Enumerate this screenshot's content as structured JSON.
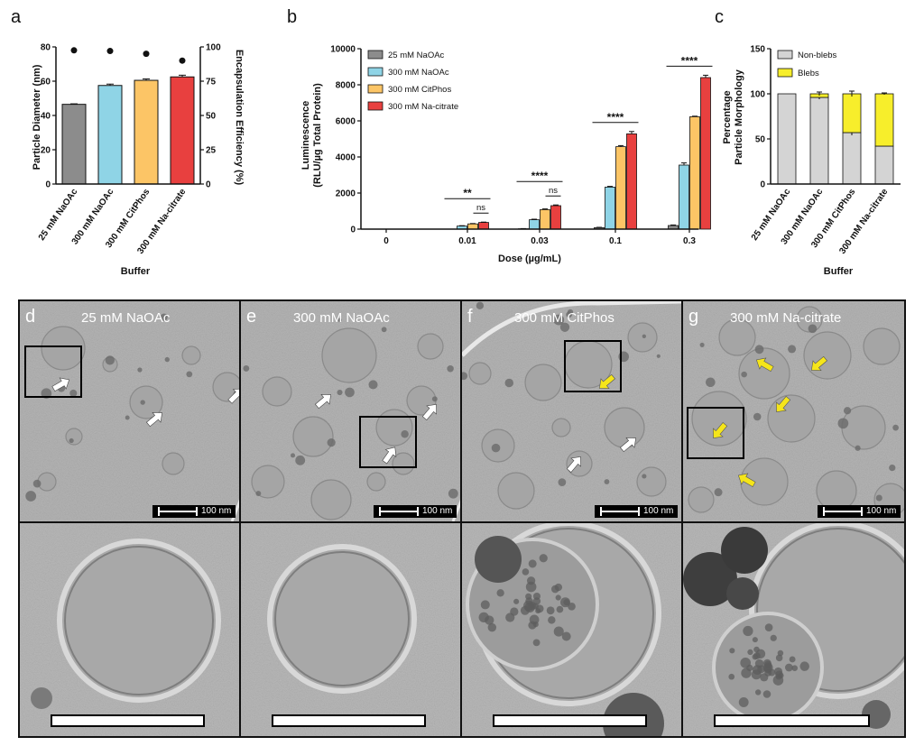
{
  "panels": {
    "a": "a",
    "b": "b",
    "c": "c",
    "d": "d",
    "e": "e",
    "f": "f",
    "g": "g"
  },
  "micrographs": {
    "titles": [
      "25 mM NaOAc",
      "300 mM NaOAc",
      "300 mM CitPhos",
      "300 mM Na-citrate"
    ],
    "scale_label": "100 nm"
  },
  "colors": {
    "grey": "#8c8c8c",
    "cyan": "#8fd4e6",
    "orange": "#fcc566",
    "red": "#e8403f",
    "blebs_yellow": "#f7ee2b",
    "nonblebs_grey": "#d4d4d4"
  },
  "chart_data": [
    {
      "id": "a",
      "type": "bar",
      "categories": [
        "25 mM NaOAc",
        "300 mM NaOAc",
        "300 mM CitPhos",
        "300 mM Na-citrate"
      ],
      "values": [
        46.5,
        57.5,
        60.5,
        62.5
      ],
      "errors": [
        0.3,
        0.8,
        0.8,
        1.0
      ],
      "secondary_values": [
        97.5,
        97,
        95,
        90
      ],
      "xlabel": "Buffer",
      "ylabel": "Particle Diameter (nm)",
      "y2label": "Encapsulation Efficiency (%)",
      "ylim": [
        0,
        80
      ],
      "yticks": [
        "0",
        "20",
        "40",
        "60",
        "80"
      ],
      "y2lim": [
        0,
        100
      ],
      "y2ticks": [
        "0",
        "25",
        "50",
        "75",
        "100"
      ]
    },
    {
      "id": "b",
      "type": "bar",
      "categories": [
        "0",
        "0.01",
        "0.03",
        "0.1",
        "0.3"
      ],
      "xlabel": "Dose (µg/mL)",
      "ylabel_line1": "Luminescence",
      "ylabel_line2": "(RLU/µg Total Protein)",
      "ylim": [
        0,
        10000
      ],
      "yticks": [
        "0",
        "2000",
        "4000",
        "6000",
        "8000",
        "10000"
      ],
      "legend_position": "top-left",
      "series": [
        {
          "name": "25 mM NaOAc",
          "values": [
            0,
            0,
            20,
            80,
            200
          ],
          "errors": [
            0,
            0,
            10,
            20,
            30
          ]
        },
        {
          "name": "300 mM NaOAc",
          "values": [
            0,
            170,
            520,
            2330,
            3550
          ],
          "errors": [
            0,
            20,
            30,
            40,
            120
          ]
        },
        {
          "name": "300 mM CitPhos",
          "values": [
            0,
            290,
            1080,
            4570,
            6230
          ],
          "errors": [
            0,
            20,
            40,
            60,
            30
          ]
        },
        {
          "name": "300 mM Na-citrate",
          "values": [
            0,
            370,
            1300,
            5280,
            8400
          ],
          "errors": [
            0,
            20,
            40,
            130,
            130
          ]
        }
      ],
      "annotations": [
        {
          "group": "0.01",
          "top": "**",
          "pair": "ns"
        },
        {
          "group": "0.03",
          "top": "****",
          "pair": "ns"
        },
        {
          "group": "0.1",
          "top": "****"
        },
        {
          "group": "0.3",
          "top": "****"
        }
      ]
    },
    {
      "id": "c",
      "type": "bar",
      "stacked": true,
      "categories": [
        "25 mM NaOAc",
        "300 mM NaOAc",
        "300 mM CitPhos",
        "300 mM Na-citrate"
      ],
      "xlabel": "Buffer",
      "ylabel_line1": "Percentage",
      "ylabel_line2": "Particle Morphology",
      "ylim": [
        0,
        150
      ],
      "yticks": [
        "0",
        "50",
        "100",
        "150"
      ],
      "legend_position": "top-right",
      "series": [
        {
          "name": "Non-blebs",
          "values": [
            100,
            96,
            57,
            42
          ],
          "errors": [
            0,
            2,
            3,
            0
          ]
        },
        {
          "name": "Blebs",
          "values": [
            0,
            4,
            43,
            58
          ],
          "errors": [
            0,
            2,
            3,
            1
          ]
        }
      ]
    }
  ]
}
